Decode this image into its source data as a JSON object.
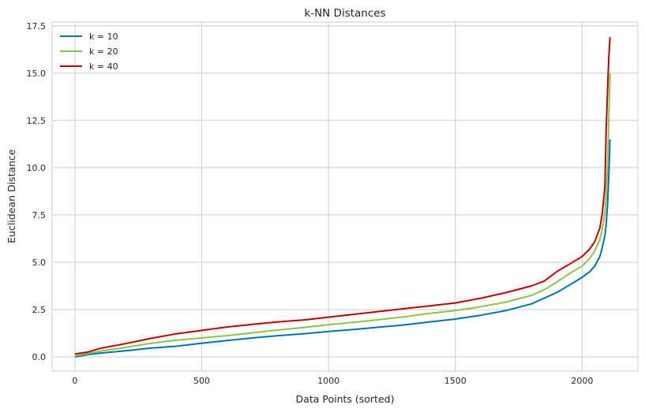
{
  "chart_data": {
    "type": "line",
    "title": "k-NN Distances",
    "xlabel": "Data Points (sorted)",
    "ylabel": "Euclidean Distance",
    "xlim": [
      -90,
      2220
    ],
    "ylim": [
      -0.75,
      17.7
    ],
    "xticks": [
      0,
      500,
      1000,
      1500,
      2000
    ],
    "yticks": [
      0.0,
      2.5,
      5.0,
      7.5,
      10.0,
      12.5,
      15.0,
      17.5
    ],
    "xtick_labels": [
      "0",
      "500",
      "1000",
      "1500",
      "2000"
    ],
    "ytick_labels": [
      "0.0",
      "2.5",
      "5.0",
      "7.5",
      "10.0",
      "12.5",
      "15.0",
      "17.5"
    ],
    "grid": true,
    "legend_position": "top-left",
    "series": [
      {
        "name": "k = 10",
        "color": "#0072b2",
        "x": [
          0,
          50,
          100,
          200,
          300,
          400,
          500,
          600,
          700,
          800,
          900,
          1000,
          1100,
          1200,
          1300,
          1400,
          1500,
          1600,
          1700,
          1800,
          1850,
          1900,
          1950,
          2000,
          2030,
          2050,
          2070,
          2080,
          2090,
          2095,
          2100,
          2105,
          2110
        ],
        "y": [
          0.0,
          0.12,
          0.2,
          0.32,
          0.46,
          0.56,
          0.72,
          0.86,
          1.0,
          1.12,
          1.22,
          1.34,
          1.45,
          1.57,
          1.69,
          1.85,
          2.0,
          2.2,
          2.45,
          2.8,
          3.1,
          3.4,
          3.8,
          4.2,
          4.5,
          4.8,
          5.3,
          5.8,
          6.4,
          7.0,
          8.0,
          9.5,
          11.5
        ]
      },
      {
        "name": "k = 20",
        "color": "#8bc34a",
        "x": [
          0,
          50,
          100,
          200,
          300,
          400,
          500,
          600,
          700,
          800,
          900,
          1000,
          1100,
          1200,
          1300,
          1400,
          1500,
          1600,
          1700,
          1800,
          1850,
          1900,
          1950,
          2000,
          2030,
          2050,
          2070,
          2080,
          2090,
          2095,
          2100,
          2105,
          2110
        ],
        "y": [
          0.05,
          0.18,
          0.3,
          0.5,
          0.72,
          0.88,
          1.0,
          1.12,
          1.27,
          1.42,
          1.55,
          1.7,
          1.83,
          1.97,
          2.12,
          2.3,
          2.45,
          2.65,
          2.9,
          3.25,
          3.55,
          3.95,
          4.4,
          4.8,
          5.2,
          5.6,
          6.2,
          6.8,
          7.6,
          8.5,
          10.0,
          12.5,
          15.0
        ]
      },
      {
        "name": "k = 40",
        "color": "#c00000",
        "x": [
          0,
          50,
          100,
          200,
          300,
          400,
          500,
          600,
          700,
          800,
          900,
          1000,
          1100,
          1200,
          1300,
          1400,
          1500,
          1600,
          1700,
          1800,
          1850,
          1900,
          1950,
          2000,
          2030,
          2050,
          2070,
          2080,
          2090,
          2095,
          2100,
          2105,
          2110
        ],
        "y": [
          0.15,
          0.25,
          0.45,
          0.7,
          0.98,
          1.22,
          1.4,
          1.58,
          1.72,
          1.85,
          1.95,
          2.1,
          2.25,
          2.4,
          2.55,
          2.7,
          2.85,
          3.1,
          3.4,
          3.75,
          4.0,
          4.5,
          4.9,
          5.3,
          5.7,
          6.1,
          6.8,
          7.6,
          9.0,
          12.0,
          14.0,
          15.8,
          16.9
        ]
      }
    ]
  }
}
